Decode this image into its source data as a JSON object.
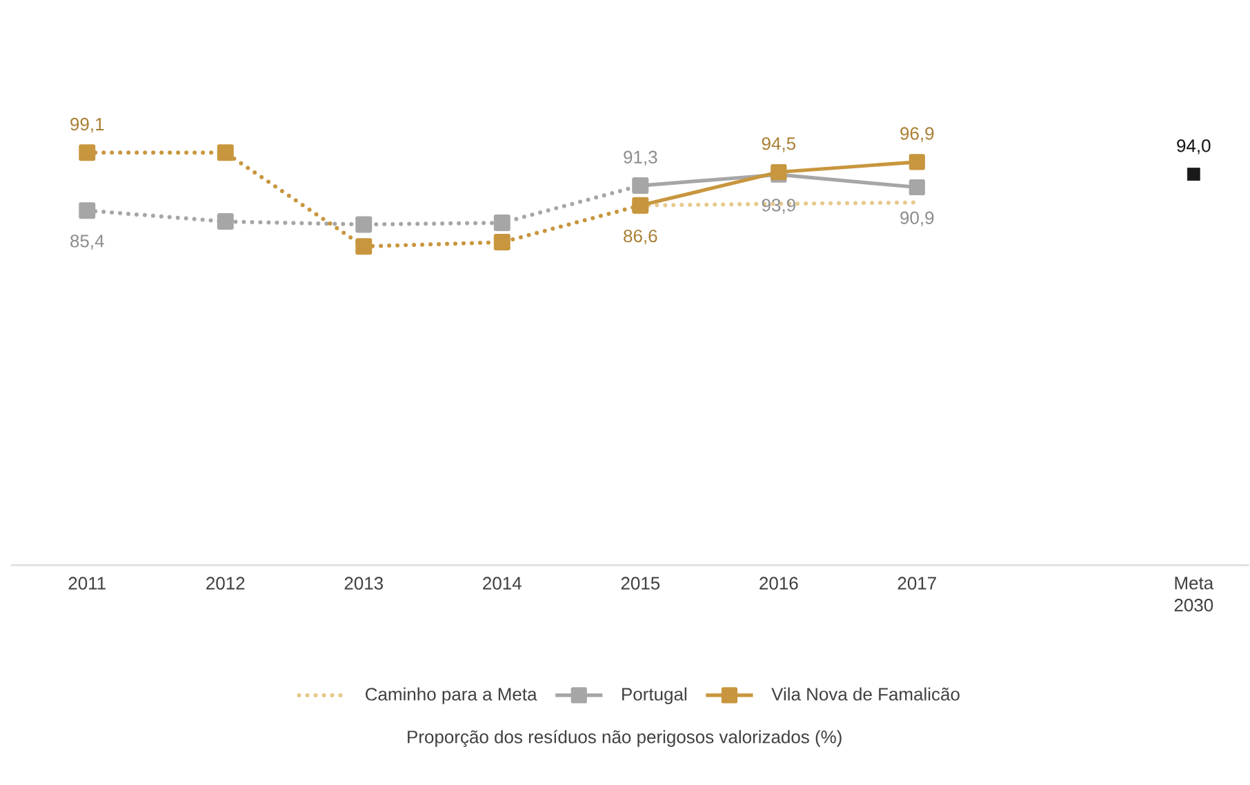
{
  "chart_data": {
    "type": "line",
    "annotations": [
      "Proporção dos resíduos não perigosos valorizados (%)"
    ],
    "categories": [
      "2011",
      "2012",
      "2013",
      "2014",
      "2015",
      "2016",
      "2017",
      null,
      "Meta 2030"
    ],
    "grid": false,
    "legend": "bottom",
    "tick_labels": "x",
    "series": [
      {
        "name": "Caminho para a Meta",
        "color": "#e6c98c",
        "line_style": "dotted",
        "marker": "none",
        "values": [
          null,
          null,
          null,
          null,
          86.6,
          87.0,
          87.3,
          null,
          null
        ]
      },
      {
        "name": "Portugal",
        "color": "#a6a6a6",
        "line_style": "solid",
        "marker": "square",
        "values": [
          null,
          null,
          null,
          null,
          91.3,
          93.9,
          90.9,
          null,
          null
        ],
        "value_labels": [
          null,
          null,
          null,
          null,
          "91,3",
          "93,9",
          "90,9",
          null,
          null
        ]
      },
      {
        "color": "#a6a6a6",
        "line_style": "dotted",
        "marker": "square",
        "values": [
          85.4,
          82.8,
          82.1,
          82.5,
          91.3,
          null,
          null,
          null,
          null
        ],
        "value_labels": [
          "85,4",
          null,
          null,
          null,
          null,
          null,
          null,
          null,
          null
        ]
      },
      {
        "name": "Vila Nova de Famalicão",
        "color": "#c8963e",
        "line_style": "solid",
        "marker": "square",
        "values": [
          null,
          null,
          null,
          null,
          86.6,
          94.5,
          96.9,
          null,
          null
        ],
        "value_labels": [
          null,
          null,
          null,
          null,
          "86,6",
          "94,5",
          "96,9",
          null,
          null
        ]
      },
      {
        "color": "#c8963e",
        "line_style": "dotted",
        "marker": "square",
        "values": [
          99.1,
          99.1,
          76.9,
          77.9,
          86.6,
          null,
          null,
          null,
          null
        ],
        "value_labels": [
          "99,1",
          null,
          null,
          null,
          null,
          null,
          null,
          null,
          null
        ]
      },
      {
        "type": "scatter",
        "color": "#1a1a1a",
        "marker": "square",
        "values": [
          null,
          null,
          null,
          null,
          null,
          null,
          null,
          null,
          94.0
        ],
        "value_labels": [
          null,
          null,
          null,
          null,
          null,
          null,
          null,
          null,
          "94,0"
        ]
      }
    ]
  }
}
